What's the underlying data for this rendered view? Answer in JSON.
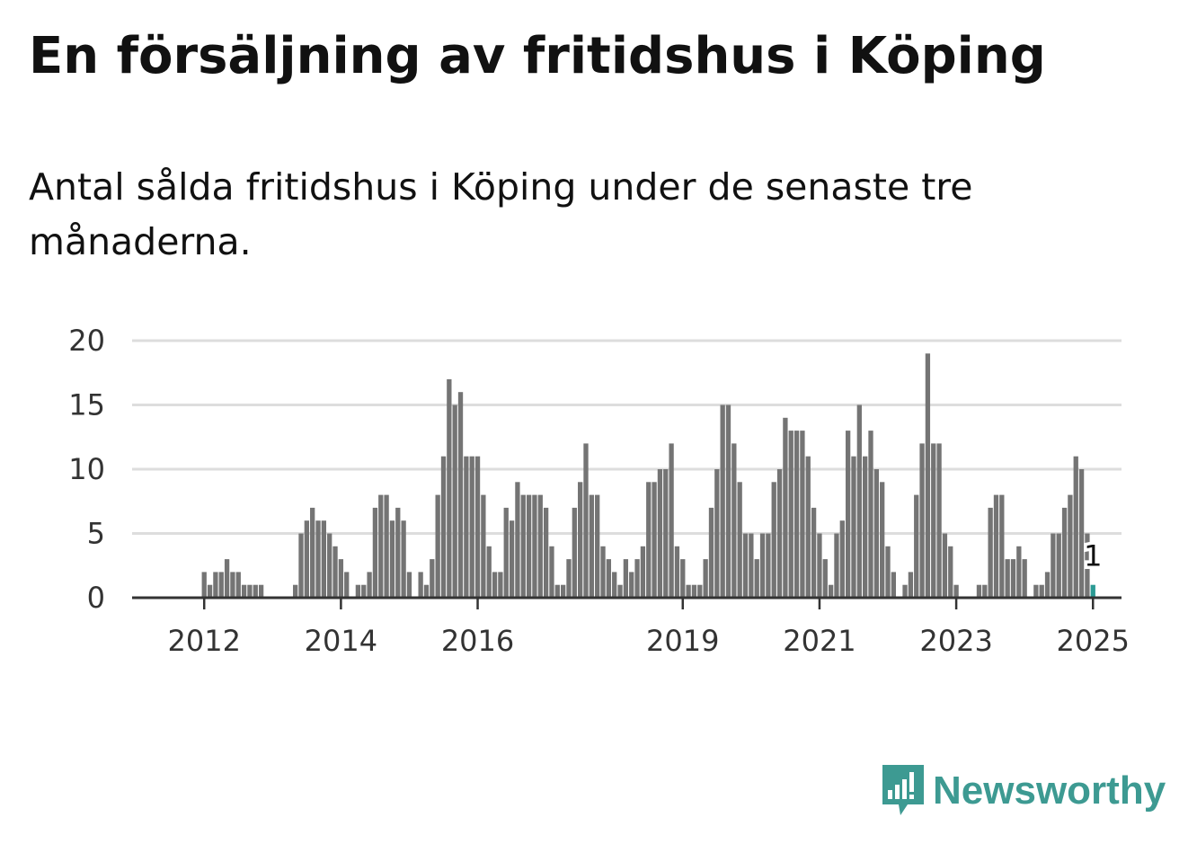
{
  "header": {
    "title": "En försäljning av fritidshus i Köping",
    "subtitle": "Antal sålda fritidshus i Köping under de senaste tre månaderna."
  },
  "brand": {
    "name": "Newsworthy",
    "icon": "bar-chart-speech-bubble-icon"
  },
  "colors": {
    "bar": "#747474",
    "highlight": "#2b9a94",
    "grid": "#dddddd",
    "axis": "#333333",
    "brand": "#3d9a92"
  },
  "chart_data": {
    "type": "bar",
    "title": "En försäljning av fritidshus i Köping",
    "xlabel": "",
    "ylabel": "",
    "ylim": [
      0,
      20
    ],
    "yticks": [
      "0",
      "5",
      "10",
      "15",
      "20"
    ],
    "xticks": [
      "2012",
      "2014",
      "2016",
      "2019",
      "2021",
      "2023",
      "2025"
    ],
    "grid": true,
    "categories": [
      "2011-05",
      "2011-06",
      "2011-07",
      "2011-08",
      "2011-09",
      "2011-10",
      "2011-11",
      "2011-12",
      "2012-01",
      "2012-02",
      "2012-03",
      "2012-04",
      "2012-05",
      "2012-06",
      "2012-07",
      "2012-08",
      "2012-09",
      "2012-10",
      "2012-11",
      "2012-12",
      "2013-01",
      "2013-02",
      "2013-03",
      "2013-04",
      "2013-05",
      "2013-06",
      "2013-07",
      "2013-08",
      "2013-09",
      "2013-10",
      "2013-11",
      "2013-12",
      "2014-01",
      "2014-02",
      "2014-03",
      "2014-04",
      "2014-05",
      "2014-06",
      "2014-07",
      "2014-08",
      "2014-09",
      "2014-10",
      "2014-11",
      "2014-12",
      "2015-01",
      "2015-02",
      "2015-03",
      "2015-04",
      "2015-05",
      "2015-06",
      "2015-07",
      "2015-08",
      "2015-09",
      "2015-10",
      "2015-11",
      "2015-12",
      "2016-01",
      "2016-02",
      "2016-03",
      "2016-04",
      "2016-05",
      "2016-06",
      "2016-07",
      "2016-08",
      "2016-09",
      "2016-10",
      "2016-11",
      "2016-12",
      "2017-01",
      "2017-02",
      "2017-03",
      "2017-04",
      "2017-05",
      "2017-06",
      "2017-07",
      "2017-08",
      "2017-09",
      "2017-10",
      "2017-11",
      "2017-12",
      "2018-01",
      "2018-02",
      "2018-03",
      "2018-04",
      "2018-05",
      "2018-06",
      "2018-07",
      "2018-08",
      "2018-09",
      "2018-10",
      "2018-11",
      "2018-12",
      "2019-01",
      "2019-02",
      "2019-03",
      "2019-04",
      "2019-05",
      "2019-06",
      "2019-07",
      "2019-08",
      "2019-09",
      "2019-10",
      "2019-11",
      "2019-12",
      "2020-01",
      "2020-02",
      "2020-03",
      "2020-04",
      "2020-05",
      "2020-06",
      "2020-07",
      "2020-08",
      "2020-09",
      "2020-10",
      "2020-11",
      "2020-12",
      "2021-01",
      "2021-02",
      "2021-03",
      "2021-04",
      "2021-05",
      "2021-06",
      "2021-07",
      "2021-08",
      "2021-09",
      "2021-10",
      "2021-11",
      "2021-12",
      "2022-01",
      "2022-02",
      "2022-03",
      "2022-04",
      "2022-05",
      "2022-06",
      "2022-07",
      "2022-08",
      "2022-09",
      "2022-10",
      "2022-11",
      "2022-12",
      "2023-01",
      "2023-02",
      "2023-03",
      "2023-04",
      "2023-05",
      "2023-06",
      "2023-07",
      "2023-08",
      "2023-09",
      "2023-10",
      "2023-11",
      "2023-12",
      "2024-01",
      "2024-02",
      "2024-03",
      "2024-04",
      "2024-05",
      "2024-06",
      "2024-07",
      "2024-08",
      "2024-09",
      "2024-10",
      "2024-11",
      "2024-12",
      "2025-01"
    ],
    "values": [
      0,
      0,
      0,
      0,
      0,
      0,
      0,
      0,
      2,
      1,
      2,
      2,
      3,
      2,
      2,
      1,
      1,
      1,
      1,
      0,
      0,
      0,
      0,
      0,
      1,
      5,
      6,
      7,
      6,
      6,
      5,
      4,
      3,
      2,
      0,
      1,
      1,
      2,
      7,
      8,
      8,
      6,
      7,
      6,
      2,
      0,
      2,
      1,
      3,
      8,
      11,
      17,
      15,
      16,
      11,
      11,
      11,
      8,
      4,
      2,
      2,
      7,
      6,
      9,
      8,
      8,
      8,
      8,
      7,
      4,
      1,
      1,
      3,
      7,
      9,
      12,
      8,
      8,
      4,
      3,
      2,
      1,
      3,
      2,
      3,
      4,
      9,
      9,
      10,
      10,
      12,
      4,
      3,
      1,
      1,
      1,
      3,
      7,
      10,
      15,
      15,
      12,
      9,
      5,
      5,
      3,
      5,
      5,
      9,
      10,
      14,
      13,
      13,
      13,
      11,
      7,
      5,
      3,
      1,
      5,
      6,
      13,
      11,
      15,
      11,
      13,
      10,
      9,
      4,
      2,
      0,
      1,
      2,
      8,
      12,
      19,
      12,
      12,
      5,
      4,
      1,
      0,
      0,
      0,
      1,
      1,
      7,
      8,
      8,
      3,
      3,
      4,
      3,
      0,
      1,
      1,
      2,
      5,
      5,
      7,
      8,
      11,
      10,
      5,
      1
    ],
    "highlight": {
      "category": "2025-01",
      "value": 1,
      "label": "1"
    }
  }
}
